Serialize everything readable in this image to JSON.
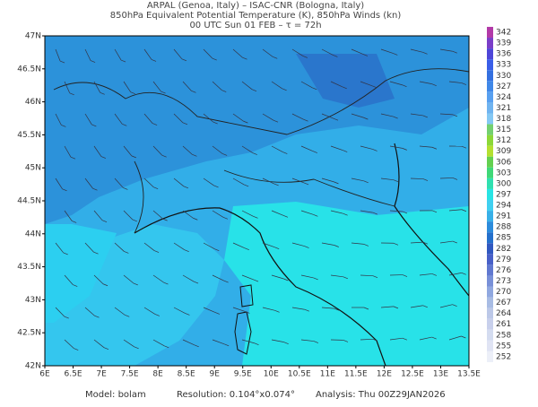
{
  "header": {
    "line1": "ARPAL (Genoa, Italy)  –  ISAC-CNR (Bologna, Italy)",
    "line2": "850hPa Equivalent Potential Temperature (K), 850hPa Winds (kn)",
    "line3": "00 UTC Sun 01 FEB  –  τ = 72h"
  },
  "map": {
    "lon_labels": [
      "6E",
      "6.5E",
      "7E",
      "7.5E",
      "8E",
      "8.5E",
      "9E",
      "9.5E",
      "10E",
      "10.5E",
      "11E",
      "11.5E",
      "12E",
      "12.5E",
      "13E",
      "13.5E"
    ],
    "lat_labels": [
      "47N",
      "46.5N",
      "46N",
      "45.5N",
      "45N",
      "44.5N",
      "44N",
      "43.5N",
      "43N",
      "42.5N",
      "42N"
    ]
  },
  "colorbar": {
    "levels": [
      "342",
      "339",
      "336",
      "333",
      "330",
      "327",
      "324",
      "321",
      "318",
      "315",
      "312",
      "309",
      "306",
      "303",
      "300",
      "297",
      "294",
      "291",
      "288",
      "285",
      "282",
      "279",
      "276",
      "273",
      "270",
      "267",
      "264",
      "261",
      "258",
      "255",
      "252"
    ],
    "colors": [
      "#b23aa8",
      "#7a3ec8",
      "#4e46d8",
      "#3a5ee8",
      "#3470e0",
      "#4088e8",
      "#58a0f0",
      "#70b4f0",
      "#84c8f4",
      "#74d070",
      "#8cd838",
      "#b4e030",
      "#64d050",
      "#40d878",
      "#30e0b0",
      "#28e4e4",
      "#40d0f0",
      "#38b0e8",
      "#2c8cdc",
      "#2470cc",
      "#3058c0",
      "#4860c8",
      "#6078d0",
      "#7890d8",
      "#90a8e0",
      "#a8bce4",
      "#bcc8e8",
      "#c8d0ec",
      "#d4dcf0",
      "#e0e4f4",
      "#eceff8"
    ]
  },
  "footer": {
    "model": "Model: bolam",
    "resolution": "Resolution: 0.104°x0.074°",
    "analysis": "Analysis: Thu 00Z29JAN2026"
  }
}
